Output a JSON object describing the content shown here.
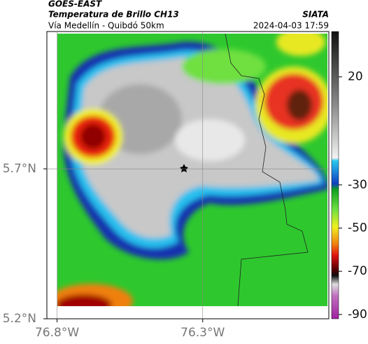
{
  "header": {
    "title": "GOES-EAST",
    "subtitle": "Temperatura de Brillo CH13",
    "route": "Vía Medellín - Quibdó 50km",
    "source": "SIATA",
    "datetime": "2024-04-03 17:59"
  },
  "map": {
    "xlim": [
      -76.835,
      -75.867
    ],
    "ylim": [
      5.2,
      6.158
    ],
    "xticks": [
      {
        "value": -76.8,
        "label": "76.8°W"
      },
      {
        "value": -76.3,
        "label": "76.3°W"
      }
    ],
    "yticks": [
      {
        "value": 5.7,
        "label": "5.7°N"
      },
      {
        "value": 5.2,
        "label": "5.2°N"
      }
    ],
    "grid": true
  },
  "colorbar": {
    "lim": [
      -92,
      41
    ],
    "ticks": [
      20,
      -30,
      -50,
      -70,
      -90
    ]
  }
}
